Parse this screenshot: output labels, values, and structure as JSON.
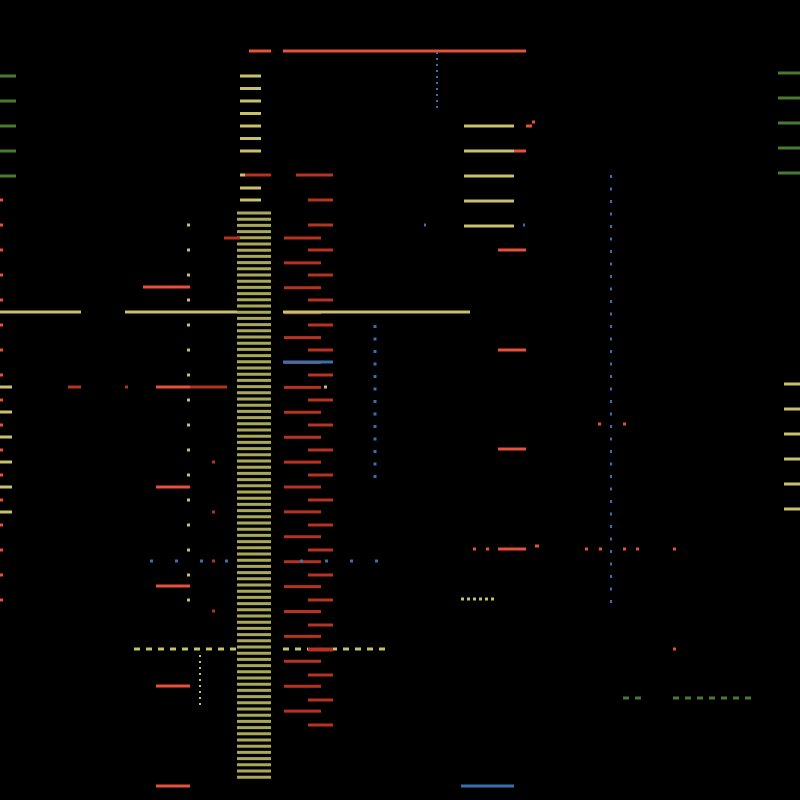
{
  "colors": {
    "background": "#000000",
    "olive": "#c8c06a",
    "olive_dim": "#a8a858",
    "red": "#e8503a",
    "red_dark": "#b83222",
    "blue": "#3a6fb0",
    "green": "#4a7a32"
  },
  "canvas_label": "abstract-dash-pattern"
}
